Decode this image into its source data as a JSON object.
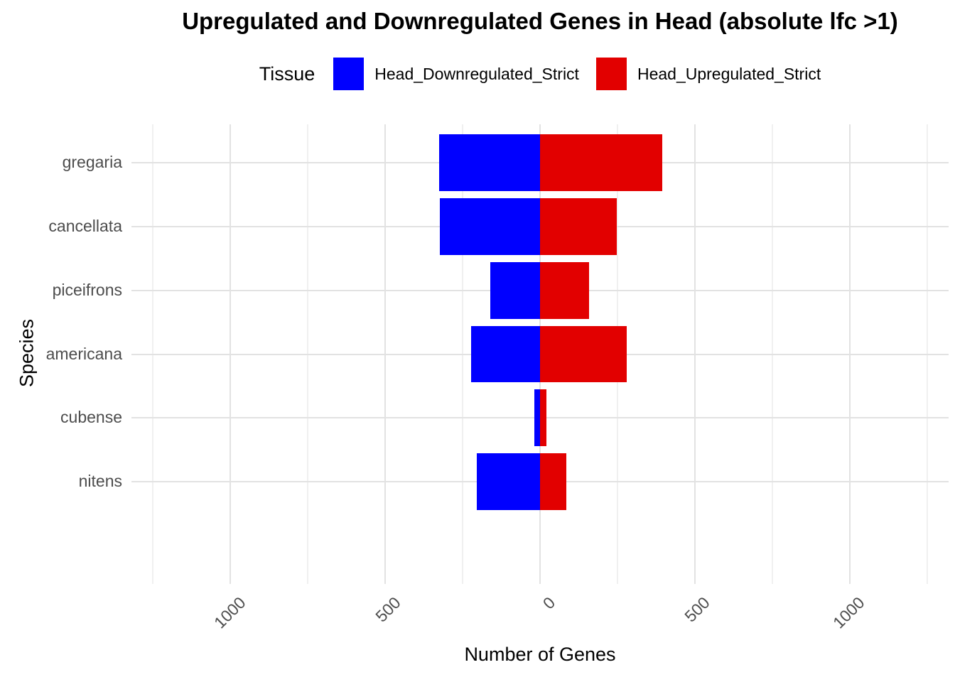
{
  "title": "Upregulated and Downregulated Genes in Head (absolute lfc >1)",
  "legend": {
    "title": "Tissue",
    "items": [
      {
        "label": "Head_Downregulated_Strict",
        "color": "#0000ff"
      },
      {
        "label": "Head_Upregulated_Strict",
        "color": "#e20000"
      }
    ]
  },
  "chart_data": {
    "type": "bar",
    "orientation": "horizontal-diverging",
    "title": "Upregulated and Downregulated Genes in Head (absolute lfc >1)",
    "xlabel": "Number of Genes",
    "ylabel": "Species",
    "categories": [
      "gregaria",
      "cancellata",
      "piceifrons",
      "americana",
      "cubense",
      "nitens"
    ],
    "series": [
      {
        "name": "Head_Downregulated_Strict",
        "color": "#0000ff",
        "values": [
          -326,
          -324,
          -160,
          -222,
          -18,
          -204
        ]
      },
      {
        "name": "Head_Upregulated_Strict",
        "color": "#e20000",
        "values": [
          394,
          247,
          159,
          279,
          21,
          86
        ]
      }
    ],
    "xlim": [
      -1320,
      1320
    ],
    "x_major_ticks": [
      -1000,
      -500,
      0,
      500,
      1000
    ],
    "x_tick_labels": [
      "1000",
      "500",
      "0",
      "500",
      "1000"
    ],
    "x_minor_ticks": [
      -1250,
      -750,
      -250,
      250,
      750,
      1250
    ],
    "grid": true,
    "legend_position": "top",
    "bar_width_fraction": 0.89
  },
  "colors": {
    "background": "#ffffff",
    "grid_major": "#e2e2e2",
    "grid_minor": "#f0f0f0",
    "axis_text": "#4d4d4d",
    "text": "#000000"
  }
}
